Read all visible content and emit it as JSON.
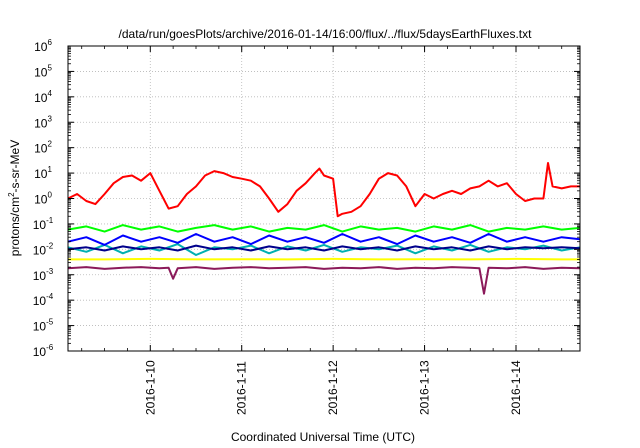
{
  "chart_data": {
    "type": "line",
    "title": "/data/run/goesPlots/archive/2016-01-14/16:00/flux/../flux/5daysEarthFluxes.txt",
    "xlabel": "Coordinated Universal Time (UTC)",
    "ylabel": {
      "main": "protons/cm",
      "sup": "2",
      "rest": "-s-sr-MeV"
    },
    "x_ticks": [
      "2016-1-10",
      "2016-1-11",
      "2016-1-12",
      "2016-1-13",
      "2016-1-14"
    ],
    "y_scale": "log",
    "ylim": [
      1e-06,
      1000000.0
    ],
    "y_ticks": [
      {
        "base": "10",
        "exp": "-6"
      },
      {
        "base": "10",
        "exp": "-5"
      },
      {
        "base": "10",
        "exp": "-4"
      },
      {
        "base": "10",
        "exp": "-3"
      },
      {
        "base": "10",
        "exp": "-2"
      },
      {
        "base": "10",
        "exp": "-1"
      },
      {
        "base": "10",
        "exp": "0"
      },
      {
        "base": "10",
        "exp": "1"
      },
      {
        "base": "10",
        "exp": "2"
      },
      {
        "base": "10",
        "exp": "3"
      },
      {
        "base": "10",
        "exp": "4"
      },
      {
        "base": "10",
        "exp": "5"
      },
      {
        "base": "10",
        "exp": "6"
      }
    ],
    "xlim": [
      9.1,
      14.7
    ],
    "grid": true,
    "series": [
      {
        "color": "#ff0000",
        "x": [
          9.1,
          9.2,
          9.3,
          9.4,
          9.5,
          9.6,
          9.7,
          9.8,
          9.9,
          10.0,
          10.1,
          10.2,
          10.3,
          10.4,
          10.5,
          10.6,
          10.7,
          10.8,
          10.9,
          11.0,
          11.1,
          11.2,
          11.3,
          11.4,
          11.5,
          11.6,
          11.7,
          11.8,
          11.85,
          11.9,
          12.0,
          12.05,
          12.1,
          12.2,
          12.3,
          12.4,
          12.5,
          12.6,
          12.7,
          12.8,
          12.9,
          13.0,
          13.1,
          13.2,
          13.3,
          13.4,
          13.5,
          13.6,
          13.7,
          13.8,
          13.9,
          14.0,
          14.1,
          14.2,
          14.3,
          14.35,
          14.4,
          14.5,
          14.6,
          14.7
        ],
        "y": [
          1.0,
          1.5,
          0.8,
          0.6,
          1.5,
          4,
          7,
          8,
          5,
          10,
          2,
          0.4,
          0.5,
          1.5,
          3,
          8,
          12,
          10,
          7,
          6,
          5,
          3,
          1,
          0.3,
          0.6,
          2,
          4,
          10,
          15,
          8,
          6,
          0.2,
          0.25,
          0.3,
          0.5,
          1.5,
          6,
          10,
          8,
          3,
          0.5,
          1.5,
          1,
          1.5,
          2,
          1.5,
          2.5,
          3,
          5,
          3,
          4,
          1.5,
          0.8,
          1,
          1,
          25,
          3,
          2.5,
          3,
          3
        ]
      },
      {
        "color": "#00ff00",
        "x": [
          9.1,
          9.3,
          9.5,
          9.7,
          9.9,
          10.1,
          10.3,
          10.5,
          10.7,
          10.9,
          11.1,
          11.3,
          11.5,
          11.7,
          11.9,
          12.1,
          12.3,
          12.5,
          12.7,
          12.9,
          13.1,
          13.3,
          13.5,
          13.7,
          13.9,
          14.1,
          14.3,
          14.5,
          14.7
        ],
        "y": [
          0.06,
          0.08,
          0.05,
          0.09,
          0.06,
          0.08,
          0.05,
          0.07,
          0.09,
          0.06,
          0.08,
          0.05,
          0.07,
          0.06,
          0.09,
          0.05,
          0.08,
          0.06,
          0.07,
          0.05,
          0.08,
          0.06,
          0.09,
          0.05,
          0.07,
          0.06,
          0.08,
          0.06,
          0.07
        ]
      },
      {
        "color": "#00b0b0",
        "x": [
          9.1,
          9.3,
          9.5,
          9.7,
          9.9,
          10.1,
          10.3,
          10.5,
          10.7,
          10.9,
          11.1,
          11.3,
          11.5,
          11.7,
          11.9,
          12.1,
          12.3,
          12.5,
          12.7,
          12.9,
          13.1,
          13.3,
          13.5,
          13.7,
          13.9,
          14.1,
          14.3,
          14.5,
          14.7
        ],
        "y": [
          0.012,
          0.008,
          0.015,
          0.007,
          0.013,
          0.009,
          0.016,
          0.006,
          0.012,
          0.01,
          0.014,
          0.007,
          0.013,
          0.009,
          0.015,
          0.008,
          0.012,
          0.01,
          0.014,
          0.007,
          0.013,
          0.009,
          0.015,
          0.008,
          0.012,
          0.01,
          0.014,
          0.009,
          0.012
        ]
      },
      {
        "color": "#0000ff",
        "x": [
          9.1,
          9.3,
          9.5,
          9.7,
          9.9,
          10.1,
          10.3,
          10.5,
          10.7,
          10.9,
          11.1,
          11.3,
          11.5,
          11.7,
          11.9,
          12.1,
          12.3,
          12.5,
          12.7,
          12.9,
          13.1,
          13.3,
          13.5,
          13.7,
          13.9,
          14.1,
          14.3,
          14.5,
          14.7
        ],
        "y": [
          0.02,
          0.03,
          0.015,
          0.035,
          0.02,
          0.03,
          0.018,
          0.04,
          0.02,
          0.03,
          0.016,
          0.035,
          0.02,
          0.03,
          0.018,
          0.04,
          0.02,
          0.03,
          0.016,
          0.035,
          0.02,
          0.03,
          0.018,
          0.04,
          0.02,
          0.03,
          0.02,
          0.03,
          0.025
        ]
      },
      {
        "color": "#00008b",
        "x": [
          9.1,
          9.3,
          9.5,
          9.7,
          9.9,
          10.1,
          10.3,
          10.5,
          10.7,
          10.9,
          11.1,
          11.3,
          11.5,
          11.7,
          11.9,
          12.1,
          12.3,
          12.5,
          12.7,
          12.9,
          13.1,
          13.3,
          13.5,
          13.7,
          13.9,
          14.1,
          14.3,
          14.5,
          14.7
        ],
        "y": [
          0.01,
          0.012,
          0.009,
          0.013,
          0.01,
          0.012,
          0.009,
          0.014,
          0.01,
          0.012,
          0.009,
          0.013,
          0.01,
          0.012,
          0.009,
          0.013,
          0.01,
          0.012,
          0.009,
          0.013,
          0.01,
          0.012,
          0.009,
          0.013,
          0.01,
          0.012,
          0.011,
          0.012,
          0.011
        ]
      },
      {
        "color": "#ffff00",
        "x": [
          9.1,
          9.5,
          10.0,
          10.5,
          11.0,
          11.5,
          12.0,
          12.5,
          13.0,
          13.5,
          14.0,
          14.5,
          14.7
        ],
        "y": [
          0.004,
          0.004,
          0.0042,
          0.004,
          0.0041,
          0.004,
          0.0042,
          0.004,
          0.0041,
          0.004,
          0.0042,
          0.004,
          0.004
        ]
      },
      {
        "color": "#8b1a5a",
        "x": [
          9.1,
          9.3,
          9.5,
          9.7,
          9.9,
          10.1,
          10.2,
          10.25,
          10.3,
          10.5,
          10.7,
          10.9,
          11.1,
          11.3,
          11.5,
          11.7,
          11.9,
          12.1,
          12.3,
          12.5,
          12.7,
          12.9,
          13.1,
          13.3,
          13.5,
          13.6,
          13.65,
          13.7,
          13.9,
          14.1,
          14.3,
          14.5,
          14.7
        ],
        "y": [
          0.0018,
          0.002,
          0.0017,
          0.0019,
          0.002,
          0.0018,
          0.0019,
          0.0007,
          0.0018,
          0.002,
          0.0017,
          0.0019,
          0.002,
          0.0018,
          0.0019,
          0.002,
          0.0017,
          0.0019,
          0.0018,
          0.002,
          0.0017,
          0.0019,
          0.0018,
          0.002,
          0.0019,
          0.0018,
          0.00018,
          0.0019,
          0.0018,
          0.002,
          0.0017,
          0.0019,
          0.0018
        ]
      }
    ]
  }
}
